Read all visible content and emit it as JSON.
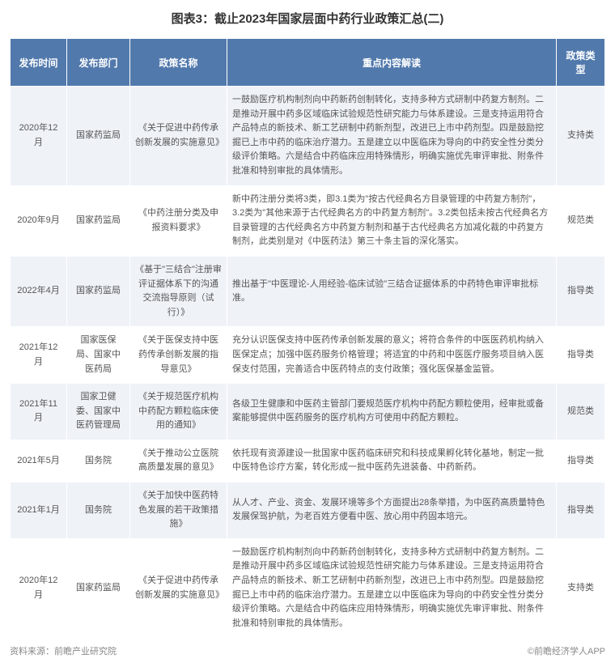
{
  "title": "图表3：截止2023年国家层面中药行业政策汇总(二)",
  "columns": [
    "发布时间",
    "发布部门",
    "政策名称",
    "重点内容解读",
    "政策类型"
  ],
  "rows": [
    {
      "date": "2020年12月",
      "dept": "国家药监局",
      "name": "《关于促进中药传承创新发展的实施意见》",
      "content": "一鼓励医疗机构制剂向中药新药创制转化，支持多种方式研制中药复方制剂。二是推动开展中药多区域临床试验规范性研究能力与体系建设。三是支持运用符合产品特点的新技术、新工艺研制中药新剂型，改进已上市中药剂型。四是鼓励挖掘已上市中药的临床治疗潜力。五是建立以中医临床为导向的中药安全性分类分级评价策略。六是结合中药临床应用特殊情形，明确实施优先审评审批、附条件批准和特别审批的具体情形。",
      "type": "支持类"
    },
    {
      "date": "2020年9月",
      "dept": "国家药监局",
      "name": "《中药注册分类及申报资料要求》",
      "content": "新中药注册分类将3类，即3.1类为\"按古代经典名方目录管理的中药复方制剂\"，3.2类为\"其他来源于古代经典名方的中药复方制剂\"。3.2类包括未按古代经典名方目录管理的古代经典名方中药复方制剂和基于古代经典名方加减化裁的中药复方制剂，此类别是对《中医药法》第三十条主旨的深化落实。",
      "type": "规范类"
    },
    {
      "date": "2022年4月",
      "dept": "国家药监局",
      "name": "《基于\"三结合\"注册审评证据体系下的沟通交流指导原则（试行）》",
      "content": "推出基于\"中医理论-人用经验-临床试验\"三结合证据体系的中药特色审评审批标准。",
      "type": "指导类"
    },
    {
      "date": "2021年12月",
      "dept": "国家医保局、国家中医药局",
      "name": "《关于医保支持中医药传承创新发展的指导意见》",
      "content": "充分认识医保支持中医药传承创新发展的意义；将符合条件的中医医药机构纳入医保定点；加强中医药服务价格管理；将适宜的中药和中医医疗服务项目纳入医保支付范围，完善适合中医药特点的支付政策；强化医保基金监管。",
      "type": "指导类"
    },
    {
      "date": "2021年11月",
      "dept": "国家卫健委、国家中医药管理局",
      "name": "《关于规范医疗机构中药配方颗粒临床使用的通知》",
      "content": "各级卫生健康和中医药主管部门要规范医疗机构中药配方颗粒使用，经审批或备案能够提供中医药服务的医疗机构方可使用中药配方颗粒。",
      "type": "规范类"
    },
    {
      "date": "2021年5月",
      "dept": "国务院",
      "name": "《关于推动公立医院高质量发展的意见》",
      "content": "依托现有资源建设一批国家中医药临床研究和科技成果孵化转化基地，制定一批中医特色诊疗方案，转化形成一批中医药先进装备、中药新药。",
      "type": "指导类"
    },
    {
      "date": "2021年1月",
      "dept": "国务院",
      "name": "《关于加快中医药特色发展的若干政策措施》",
      "content": "从人才、产业、资金、发展环境等多个方面提出28条举措，为中医药高质量特色发展保驾护航，为老百姓方便看中医、放心用中药固本培元。",
      "type": "指导类"
    },
    {
      "date": "2020年12月",
      "dept": "国家药监局",
      "name": "《关于促进中药传承创新发展的实施意见》",
      "content": "一鼓励医疗机构制剂向中药新药创制转化，支持多种方式研制中药复方制剂。二是推动开展中药多区域临床试验规范性研究能力与体系建设。三是支持运用符合产品特点的新技术、新工艺研制中药新剂型，改进已上市中药剂型。四是鼓励挖掘已上市中药的临床治疗潜力。五是建立以中医临床为导向的中药安全性分类分级评价策略。六是结合中药临床应用特殊情形，明确实施优先审评审批、附条件批准和特别审批的具体情形。",
      "type": "支持类"
    }
  ],
  "footer_left": "资料来源：前瞻产业研究院",
  "footer_right": "©前瞻经济学人APP",
  "colors": {
    "header_bg": "#5179ac",
    "header_text": "#ffffff",
    "row_odd_bg": "#eff3f8",
    "row_even_bg": "#ffffff",
    "text": "#555555",
    "title": "#333333",
    "footer": "#888888"
  }
}
